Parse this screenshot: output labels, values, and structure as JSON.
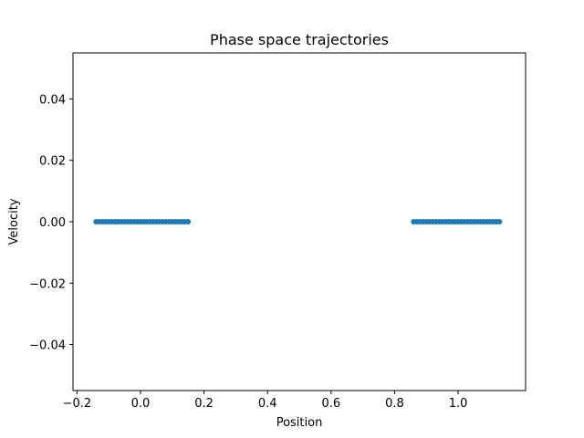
{
  "chart_data": {
    "type": "scatter",
    "title": "Phase space trajectories",
    "xlabel": "Position",
    "ylabel": "Velocity",
    "xlim": [
      -0.2125,
      1.2125
    ],
    "ylim": [
      -0.055,
      0.055
    ],
    "xticks": [
      -0.2,
      0.0,
      0.2,
      0.4,
      0.6,
      0.8,
      1.0
    ],
    "xtick_labels": [
      "−0.2",
      "0.0",
      "0.2",
      "0.4",
      "0.6",
      "0.8",
      "1.0"
    ],
    "yticks": [
      -0.04,
      -0.02,
      0.0,
      0.02,
      0.04
    ],
    "ytick_labels": [
      "−0.04",
      "−0.02",
      "0.00",
      "0.02",
      "0.04"
    ],
    "grid": false,
    "legend": "none",
    "series": [
      {
        "color": "#1f77b4",
        "x": [
          -0.14,
          -0.13,
          -0.12,
          -0.11,
          -0.1,
          -0.09,
          -0.08,
          -0.07,
          -0.06,
          -0.05,
          -0.04,
          -0.03,
          -0.02,
          -0.01,
          0.0,
          0.01,
          0.02,
          0.03,
          0.04,
          0.05,
          0.06,
          0.07,
          0.08,
          0.09,
          0.1,
          0.11,
          0.12,
          0.13,
          0.14,
          0.15,
          0.86,
          0.87,
          0.88,
          0.89,
          0.9,
          0.91,
          0.92,
          0.93,
          0.94,
          0.95,
          0.96,
          0.97,
          0.98,
          0.99,
          1.0,
          1.01,
          1.02,
          1.03,
          1.04,
          1.05,
          1.06,
          1.07,
          1.08,
          1.09,
          1.1,
          1.11,
          1.12,
          1.13
        ],
        "y": [
          0,
          0,
          0,
          0,
          0,
          0,
          0,
          0,
          0,
          0,
          0,
          0,
          0,
          0,
          0,
          0,
          0,
          0,
          0,
          0,
          0,
          0,
          0,
          0,
          0,
          0,
          0,
          0,
          0,
          0,
          0,
          0,
          0,
          0,
          0,
          0,
          0,
          0,
          0,
          0,
          0,
          0,
          0,
          0,
          0,
          0,
          0,
          0,
          0,
          0,
          0,
          0,
          0,
          0,
          0,
          0,
          0,
          0
        ]
      }
    ]
  }
}
